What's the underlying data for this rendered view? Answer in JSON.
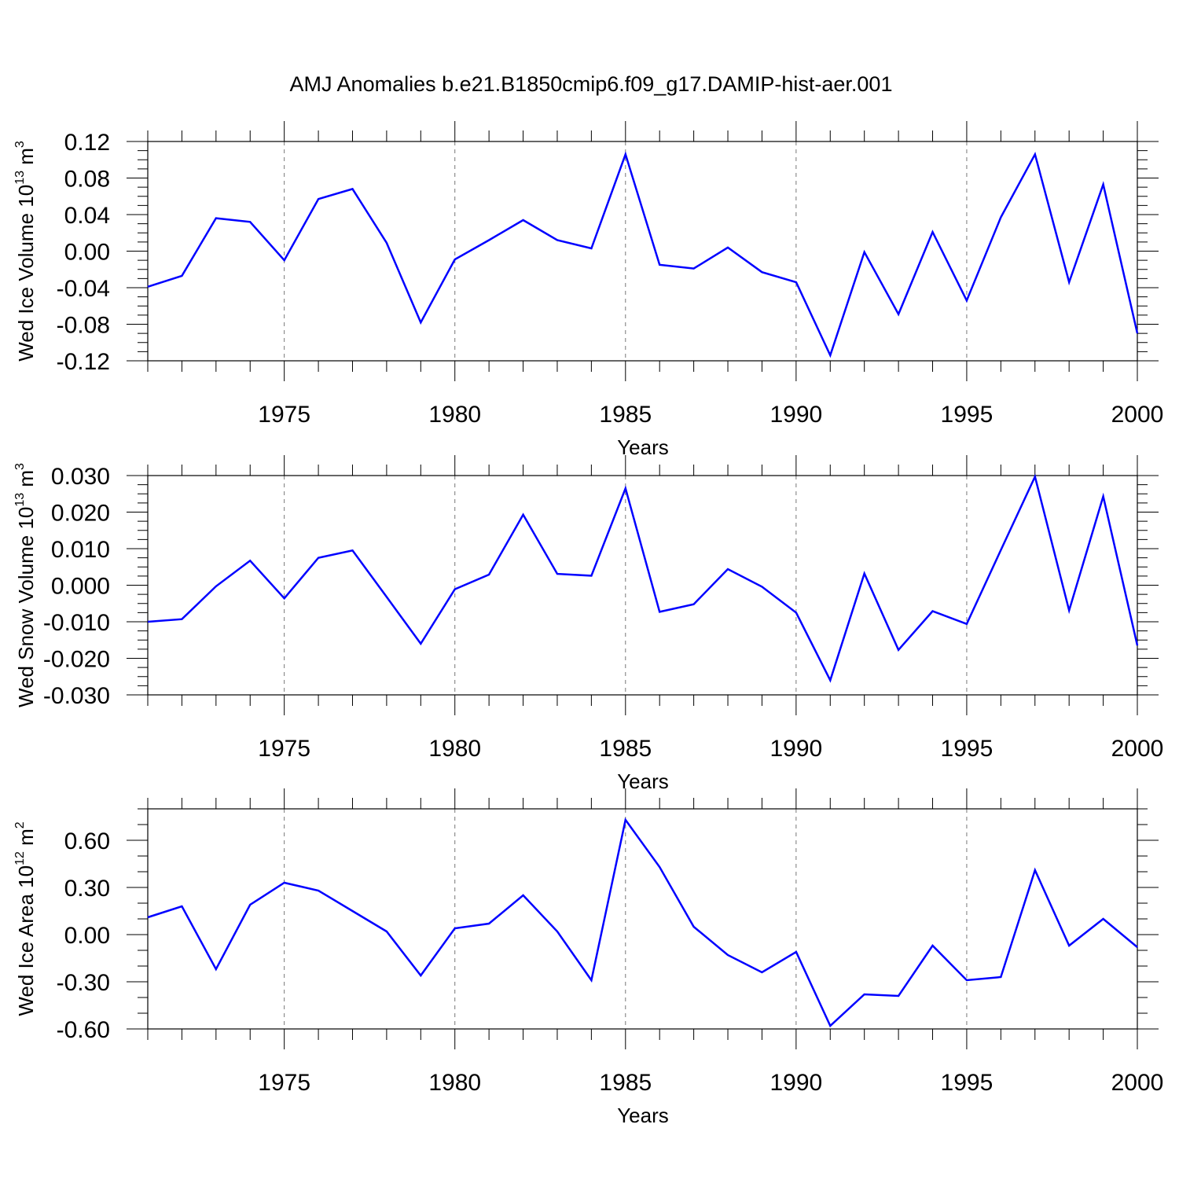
{
  "chart_data": {
    "type": "line",
    "title": "AMJ Anomalies b.e21.B1850cmip6.f09_g17.DAMIP-hist-aer.001",
    "line_color": "#0000ff",
    "grid_color": "#777777",
    "years": [
      1971,
      1972,
      1973,
      1974,
      1975,
      1976,
      1977,
      1978,
      1979,
      1980,
      1981,
      1982,
      1983,
      1984,
      1985,
      1986,
      1987,
      1988,
      1989,
      1990,
      1991,
      1992,
      1993,
      1994,
      1995,
      1996,
      1997,
      1998,
      1999,
      2000
    ],
    "xlim": [
      1971,
      2000
    ],
    "xticks": [
      1975,
      1980,
      1985,
      1990,
      1995,
      2000
    ],
    "vertical_dashed_lines": [
      1975,
      1980,
      1985,
      1990,
      1995
    ],
    "panels": [
      {
        "name": "ice-volume",
        "ylabel": "Wed Ice Volume 10",
        "ylabel_exp": "13",
        "ylabel_unit": " m",
        "ylabel_unit_exp": "3",
        "xlabel": "Years",
        "ylim": [
          -0.12,
          0.12
        ],
        "yticks": [
          "0.12",
          "0.08",
          "0.04",
          "0.00",
          "-0.04",
          "-0.08",
          "-0.12"
        ],
        "ytick_values": [
          0.12,
          0.08,
          0.04,
          0.0,
          -0.04,
          -0.08,
          -0.12
        ],
        "minor_step": 0.01,
        "values": [
          -0.039,
          -0.027,
          0.036,
          0.032,
          -0.01,
          0.057,
          0.068,
          0.009,
          -0.078,
          -0.009,
          0.012,
          0.034,
          0.012,
          0.003,
          0.106,
          -0.015,
          -0.019,
          0.004,
          -0.023,
          -0.034,
          -0.114,
          -0.001,
          -0.069,
          0.021,
          -0.054,
          0.037,
          0.106,
          -0.034,
          0.073,
          -0.09
        ]
      },
      {
        "name": "snow-volume",
        "ylabel": "Wed Snow Volume 10",
        "ylabel_exp": "13",
        "ylabel_unit": " m",
        "ylabel_unit_exp": "3",
        "xlabel": "Years",
        "ylim": [
          -0.03,
          0.03
        ],
        "yticks": [
          "0.030",
          "0.020",
          "0.010",
          "0.000",
          "-0.010",
          "-0.020",
          "-0.030"
        ],
        "ytick_values": [
          0.03,
          0.02,
          0.01,
          0.0,
          -0.01,
          -0.02,
          -0.03
        ],
        "minor_step": 0.0025,
        "values": [
          -0.01,
          -0.0093,
          -0.0003,
          0.0067,
          -0.0036,
          0.0075,
          0.0095,
          -0.0032,
          -0.016,
          -0.0011,
          0.0029,
          0.0193,
          0.0031,
          0.0026,
          0.0265,
          -0.0073,
          -0.0052,
          0.0044,
          -0.0004,
          -0.0075,
          -0.026,
          0.0032,
          -0.0177,
          -0.0071,
          -0.0106,
          0.0096,
          0.0297,
          -0.0069,
          0.0243,
          -0.0165
        ]
      },
      {
        "name": "ice-area",
        "ylabel": "Wed Ice Area 10",
        "ylabel_exp": "12",
        "ylabel_unit": " m",
        "ylabel_unit_exp": "2",
        "xlabel": "Years",
        "ylim": [
          -0.6,
          0.8
        ],
        "yticks": [
          "0.60",
          "0.30",
          "0.00",
          "-0.30",
          "-0.60"
        ],
        "ytick_values": [
          0.6,
          0.3,
          0.0,
          -0.3,
          -0.6
        ],
        "minor_step": 0.1,
        "values": [
          0.11,
          0.18,
          -0.22,
          0.19,
          0.33,
          0.28,
          0.15,
          0.02,
          -0.26,
          0.04,
          0.07,
          0.25,
          0.02,
          -0.29,
          0.73,
          0.43,
          0.05,
          -0.13,
          -0.24,
          -0.11,
          -0.58,
          -0.38,
          -0.39,
          -0.07,
          -0.29,
          -0.27,
          0.41,
          -0.07,
          0.1,
          -0.08
        ]
      }
    ]
  }
}
